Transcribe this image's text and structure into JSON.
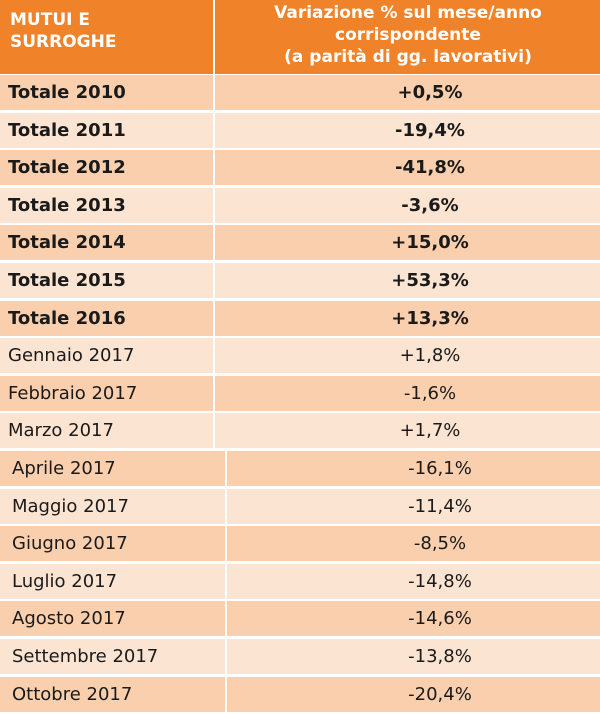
{
  "chart_data": {
    "type": "table",
    "columns": [
      "MUTUI E\nSURROGHE",
      "Variazione % sul mese/anno\ncorrispondente\n(a parità di gg. lavorativi)"
    ],
    "rows": [
      {
        "label": "Totale 2010",
        "value": "+0,5%",
        "bold": true
      },
      {
        "label": "Totale 2011",
        "value": "-19,4%",
        "bold": true
      },
      {
        "label": "Totale 2012",
        "value": "-41,8%",
        "bold": true
      },
      {
        "label": "Totale 2013",
        "value": "-3,6%",
        "bold": true
      },
      {
        "label": "Totale 2014",
        "value": "+15,0%",
        "bold": true
      },
      {
        "label": "Totale 2015",
        "value": "+53,3%",
        "bold": true
      },
      {
        "label": "Totale 2016",
        "value": "+13,3%",
        "bold": true
      },
      {
        "label": "Gennaio 2017",
        "value": "+1,8%",
        "bold": false
      },
      {
        "label": "Febbraio 2017",
        "value": "-1,6%",
        "bold": false
      },
      {
        "label": "Marzo 2017",
        "value": "+1,7%",
        "bold": false
      },
      {
        "label": "Aprile 2017",
        "value": "-16,1%",
        "bold": false
      },
      {
        "label": "Maggio 2017",
        "value": "-11,4%",
        "bold": false
      },
      {
        "label": "Giugno 2017",
        "value": "-8,5%",
        "bold": false
      },
      {
        "label": "Luglio 2017",
        "value": "-14,8%",
        "bold": false
      },
      {
        "label": "Agosto 2017",
        "value": "-14,6%",
        "bold": false
      },
      {
        "label": "Settembre 2017",
        "value": "-13,8%",
        "bold": false
      },
      {
        "label": "Ottobre 2017",
        "value": "-20,4%",
        "bold": false
      }
    ]
  },
  "colors": {
    "header": "#f0832a",
    "row_dark": "#f9cfae",
    "row_light": "#fce4d2",
    "header_text": "#ffffff",
    "text": "#1a1a1a"
  }
}
